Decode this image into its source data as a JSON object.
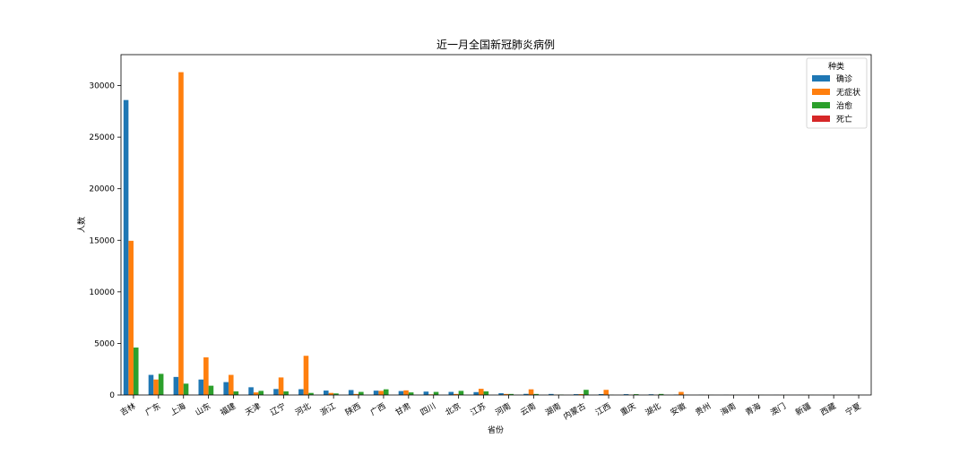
{
  "chart_data": {
    "type": "bar",
    "title": "近一月全国新冠肺炎病例",
    "xlabel": "省份",
    "ylabel": "人数",
    "ylim": [
      0,
      33000
    ],
    "yticks": [
      0,
      5000,
      10000,
      15000,
      20000,
      25000,
      30000
    ],
    "grid": false,
    "legend": {
      "title": "种类",
      "placement": "top-right"
    },
    "categories": [
      "吉林",
      "广东",
      "上海",
      "山东",
      "福建",
      "天津",
      "辽宁",
      "河北",
      "浙江",
      "陕西",
      "广西",
      "甘肃",
      "四川",
      "北京",
      "江苏",
      "河南",
      "云南",
      "湖南",
      "内蒙古",
      "江西",
      "重庆",
      "湖北",
      "安徽",
      "贵州",
      "海南",
      "青海",
      "澳门",
      "新疆",
      "西藏",
      "宁夏"
    ],
    "series": [
      {
        "name": "确诊",
        "color": "#1f77b4",
        "values": [
          28600,
          1950,
          1750,
          1500,
          1250,
          750,
          580,
          560,
          430,
          480,
          420,
          380,
          330,
          300,
          280,
          170,
          110,
          100,
          80,
          90,
          80,
          70,
          40,
          20,
          15,
          10,
          10,
          10,
          5,
          5
        ]
      },
      {
        "name": "无症状",
        "color": "#ff7f0e",
        "values": [
          14950,
          1500,
          31300,
          3650,
          1950,
          250,
          1700,
          3800,
          200,
          100,
          400,
          450,
          60,
          100,
          600,
          100,
          550,
          20,
          90,
          500,
          20,
          10,
          300,
          10,
          5,
          5,
          5,
          5,
          0,
          0
        ]
      },
      {
        "name": "治愈",
        "color": "#2ca02c",
        "values": [
          4600,
          2050,
          1100,
          900,
          350,
          400,
          350,
          200,
          150,
          300,
          550,
          250,
          300,
          400,
          350,
          100,
          100,
          40,
          500,
          20,
          80,
          100,
          20,
          10,
          10,
          5,
          5,
          5,
          0,
          0
        ]
      },
      {
        "name": "死亡",
        "color": "#d62728",
        "values": [
          5,
          0,
          10,
          0,
          0,
          0,
          0,
          0,
          0,
          0,
          0,
          0,
          0,
          0,
          0,
          0,
          0,
          0,
          0,
          0,
          0,
          0,
          0,
          0,
          0,
          0,
          0,
          0,
          0,
          0
        ]
      }
    ]
  }
}
